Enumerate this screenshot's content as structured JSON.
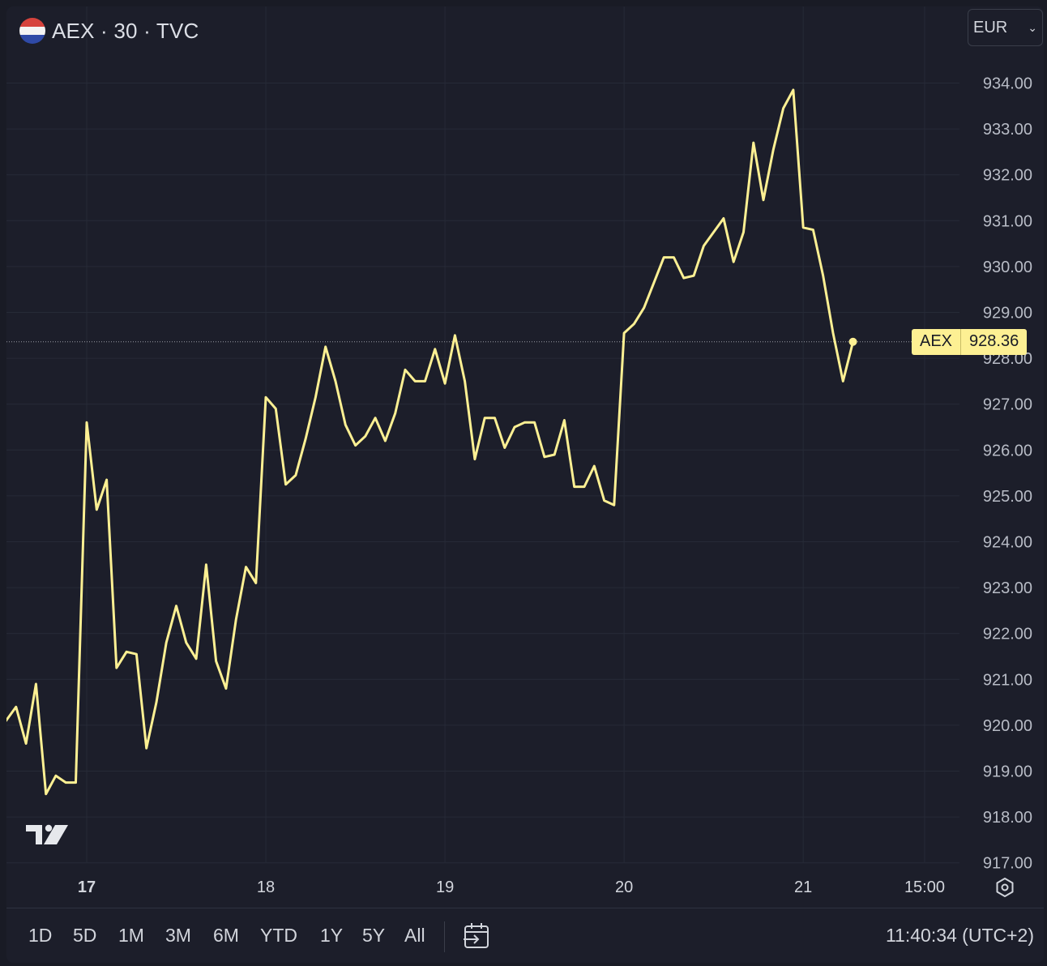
{
  "header": {
    "title": "AEX · 30 · TVC",
    "flag_icon": "netherlands-flag-icon"
  },
  "currency_select": {
    "value": "EUR"
  },
  "price_tag": {
    "symbol": "AEX",
    "value": "928.36"
  },
  "toolbar": {
    "ranges": [
      "1D",
      "5D",
      "1M",
      "3M",
      "6M",
      "YTD",
      "1Y",
      "5Y",
      "All"
    ],
    "goto_icon": "calendar-goto-icon",
    "clock": "11:40:34 (UTC+2)"
  },
  "colors": {
    "line": "#fdf093",
    "background": "#1c1e2a",
    "grid": "#262a37"
  },
  "chart_data": {
    "type": "line",
    "title": "",
    "xlabel": "",
    "ylabel": "",
    "ylim": [
      917,
      935
    ],
    "y_ticks": [
      "934.00",
      "933.00",
      "932.00",
      "931.00",
      "930.00",
      "929.00",
      "928.00",
      "927.00",
      "926.00",
      "925.00",
      "924.00",
      "923.00",
      "922.00",
      "921.00",
      "920.00",
      "919.00",
      "918.00",
      "917.00"
    ],
    "x_ticks": [
      {
        "label": "17",
        "bold": true,
        "x": 0
      },
      {
        "label": "18",
        "bold": false,
        "x": 18
      },
      {
        "label": "19",
        "bold": false,
        "x": 36
      },
      {
        "label": "20",
        "bold": false,
        "x": 54
      },
      {
        "label": "21",
        "bold": false,
        "x": 72
      },
      {
        "label": "15:00",
        "bold": false,
        "x": 84.2
      }
    ],
    "grid": true,
    "last_value": 928.36,
    "series": [
      {
        "x": [
          -8.1,
          -7.1,
          -6.1,
          -5.1,
          -4.1,
          -3.1,
          -2.1,
          -1.1,
          0,
          1.0,
          2.0,
          3.0,
          4.0,
          5.0,
          6.0,
          7.0,
          8.0,
          9.0,
          10.0,
          11.0,
          12.0,
          13.0,
          14.0,
          15.0,
          16.0,
          17.0,
          18.0,
          19.0,
          20.0,
          21.0,
          22.0,
          23.0,
          24.0,
          25.0,
          26.0,
          27.0,
          28.0,
          29.0,
          30.0,
          31.0,
          32.0,
          33.0,
          34.0,
          35.0,
          36.0,
          37.0,
          38.0,
          39.0,
          40.0,
          41.0,
          42.0,
          43.0,
          44.0,
          45.0,
          46.0,
          47.0,
          48.0,
          49.0,
          50.0,
          51.0,
          52.0,
          53.0,
          54.0,
          55.0,
          56.0,
          57.0,
          58.0,
          59.0,
          60.0,
          61.0,
          62.0,
          63.0,
          64.0,
          65.0,
          66.0,
          67.0,
          68.0,
          69.0,
          70.0,
          71.0,
          72.0,
          73.0,
          74.0,
          75.0,
          76.0,
          77.0
        ],
        "y": [
          920.1,
          920.4,
          919.6,
          920.9,
          918.5,
          918.9,
          918.75,
          918.75,
          926.6,
          924.7,
          925.35,
          921.25,
          921.6,
          921.55,
          919.5,
          920.5,
          921.8,
          922.6,
          921.8,
          921.45,
          923.5,
          921.4,
          920.8,
          922.3,
          923.45,
          923.1,
          927.15,
          926.9,
          925.25,
          925.45,
          926.25,
          927.15,
          928.25,
          927.5,
          926.55,
          926.1,
          926.3,
          926.7,
          926.2,
          926.8,
          927.75,
          927.5,
          927.5,
          928.2,
          927.45,
          928.5,
          927.5,
          925.8,
          926.7,
          926.7,
          926.05,
          926.5,
          926.6,
          926.6,
          925.85,
          925.9,
          926.65,
          925.2,
          925.2,
          925.65,
          924.9,
          924.8,
          928.55,
          928.75,
          929.1,
          929.65,
          930.2,
          930.2,
          929.75,
          929.8,
          930.45,
          930.75,
          931.05,
          930.1,
          930.75,
          932.7,
          931.45,
          932.55,
          933.45,
          933.85,
          930.85,
          930.8,
          929.8,
          928.55,
          927.5,
          928.36
        ]
      }
    ]
  }
}
